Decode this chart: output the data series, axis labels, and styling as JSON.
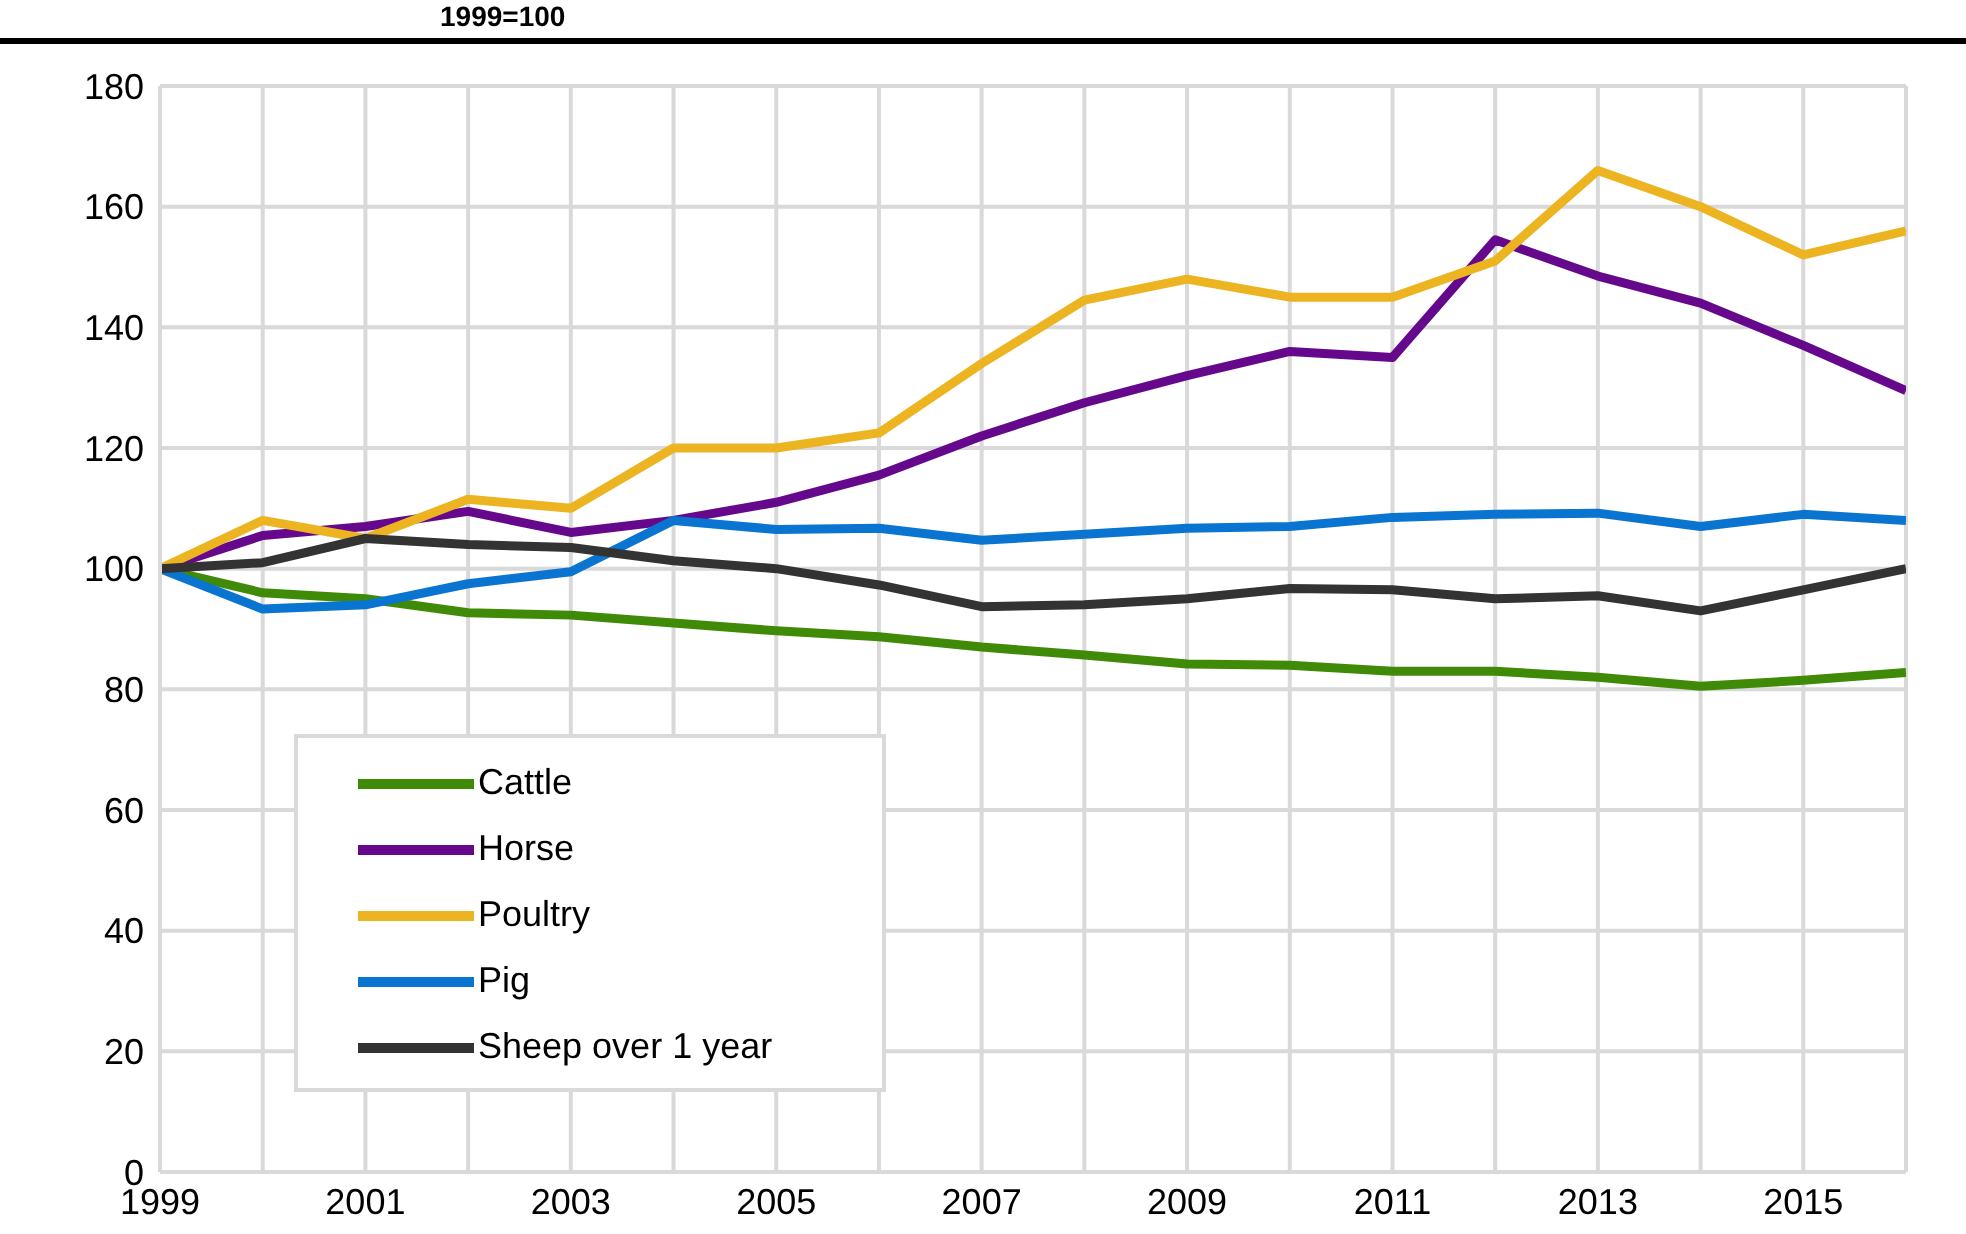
{
  "chart_data": {
    "type": "line",
    "subtitle": "1999=100",
    "x": [
      1999,
      2000,
      2001,
      2002,
      2003,
      2004,
      2005,
      2006,
      2007,
      2008,
      2009,
      2010,
      2011,
      2012,
      2013,
      2014,
      2015,
      2016
    ],
    "series": [
      {
        "name": "Cattle",
        "color": "#3f8a06",
        "values": [
          100,
          96,
          95,
          92.7,
          92.3,
          91,
          89.7,
          88.7,
          87,
          85.7,
          84.2,
          84,
          83,
          83,
          82,
          80.5,
          81.5,
          82.8
        ]
      },
      {
        "name": "Horse",
        "color": "#66088c",
        "values": [
          100,
          105.5,
          107,
          109.5,
          106,
          108,
          111,
          115.5,
          122,
          127.5,
          132,
          136,
          135,
          154.5,
          148.5,
          144,
          137,
          129.5
        ]
      },
      {
        "name": "Poultry",
        "color": "#edb422",
        "values": [
          100,
          108,
          105,
          111.5,
          110,
          120,
          120,
          122.5,
          134,
          144.5,
          148,
          145,
          145,
          151,
          166,
          160,
          152,
          156
        ]
      },
      {
        "name": "Pig",
        "color": "#0a75d1",
        "values": [
          100,
          93.3,
          94,
          97.5,
          99.5,
          108,
          106.5,
          106.7,
          104.7,
          105.7,
          106.7,
          107,
          108.5,
          109,
          109.2,
          107,
          109,
          108
        ]
      },
      {
        "name": "Sheep over 1 year",
        "color": "#333333",
        "values": [
          100,
          101,
          105,
          104,
          103.5,
          101.3,
          100,
          97.3,
          93.7,
          94,
          95,
          96.7,
          96.5,
          95,
          95.5,
          93,
          96.5,
          100
        ]
      }
    ],
    "xlim": [
      1999,
      2016
    ],
    "xticks": [
      1999,
      {
        "value": 2000,
        "label": null
      },
      2001,
      {
        "value": 2002,
        "label": null
      },
      2003,
      {
        "value": 2004,
        "label": null
      },
      2005,
      {
        "value": 2006,
        "label": null
      },
      2007,
      {
        "value": 2008,
        "label": null
      },
      2009,
      {
        "value": 2010,
        "label": null
      },
      2011,
      {
        "value": 2012,
        "label": null
      },
      2013,
      {
        "value": 2014,
        "label": null
      },
      2015,
      {
        "value": 2016,
        "label": null
      }
    ],
    "ylim": [
      0,
      180
    ],
    "yticks": [
      0,
      20,
      40,
      60,
      80,
      100,
      120,
      140,
      160,
      180
    ],
    "grid": true,
    "legend": "bottom left",
    "marker": "none",
    "line_style": "solid"
  }
}
